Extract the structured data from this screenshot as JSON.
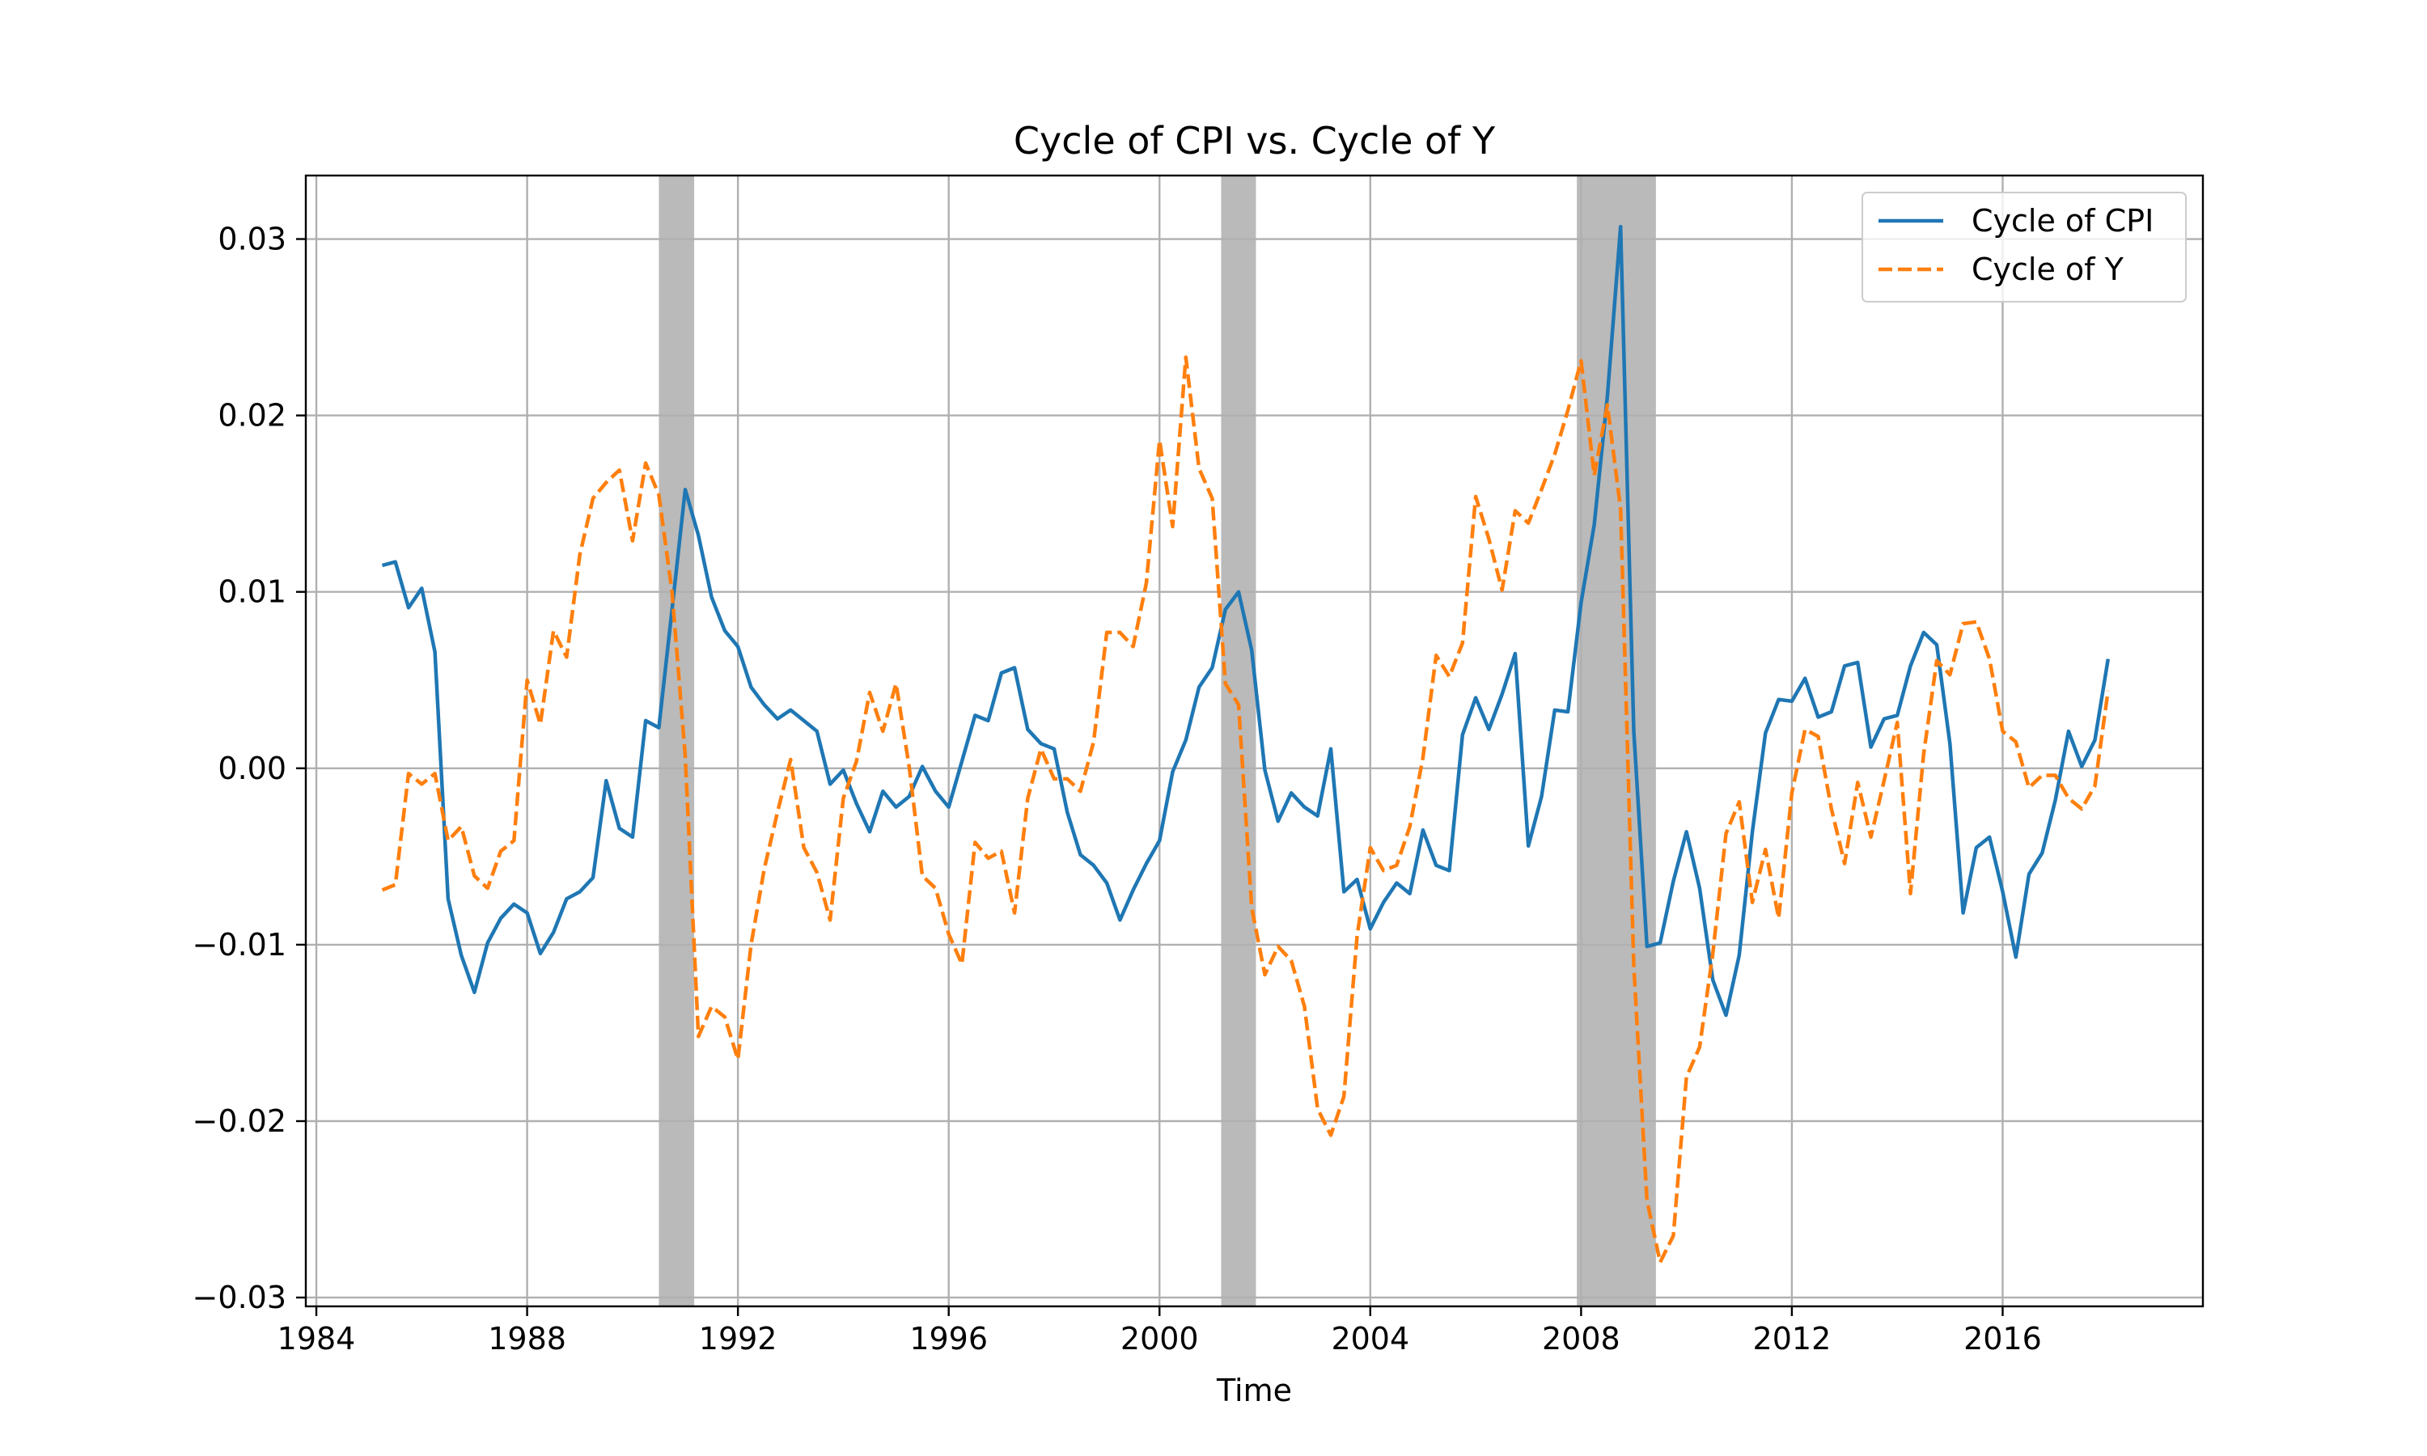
{
  "chart_data": {
    "type": "line",
    "title": "Cycle of CPI vs. Cycle of Y",
    "xlabel": "Time",
    "ylabel": "",
    "xlim": [
      1983.8,
      2019.8
    ],
    "ylim": [
      -0.0305,
      0.0336
    ],
    "grid": true,
    "legend_position": "top-right",
    "x_ticks": [
      {
        "value": 1984,
        "label": "1984"
      },
      {
        "value": 1988,
        "label": "1988"
      },
      {
        "value": 1992,
        "label": "1992"
      },
      {
        "value": 1996,
        "label": "1996"
      },
      {
        "value": 2000,
        "label": "2000"
      },
      {
        "value": 2004,
        "label": "2004"
      },
      {
        "value": 2008,
        "label": "2008"
      },
      {
        "value": 2012,
        "label": "2012"
      },
      {
        "value": 2016,
        "label": "2016"
      }
    ],
    "y_ticks": [
      {
        "value": 0.03,
        "label": "0.03"
      },
      {
        "value": 0.02,
        "label": "0.02"
      },
      {
        "value": 0.01,
        "label": "0.01"
      },
      {
        "value": 0.0,
        "label": "0.00"
      },
      {
        "value": -0.01,
        "label": "−0.01"
      },
      {
        "value": -0.02,
        "label": "−0.02"
      },
      {
        "value": -0.03,
        "label": "−0.03"
      }
    ],
    "recession_bands": [
      {
        "start": 1990.5,
        "end": 1991.17
      },
      {
        "start": 2001.17,
        "end": 2001.83
      },
      {
        "start": 2007.92,
        "end": 2009.42
      }
    ],
    "x": [
      1985.25,
      1985.5,
      1985.75,
      1986.0,
      1986.25,
      1986.5,
      1986.75,
      1987.0,
      1987.25,
      1987.5,
      1987.75,
      1988.0,
      1988.25,
      1988.5,
      1988.75,
      1989.0,
      1989.25,
      1989.5,
      1989.75,
      1990.0,
      1990.25,
      1990.5,
      1990.75,
      1991.0,
      1991.25,
      1991.5,
      1991.75,
      1992.0,
      1992.25,
      1992.5,
      1992.75,
      1993.0,
      1993.25,
      1993.5,
      1993.75,
      1994.0,
      1994.25,
      1994.5,
      1994.75,
      1995.0,
      1995.25,
      1995.5,
      1995.75,
      1996.0,
      1996.25,
      1996.5,
      1996.75,
      1997.0,
      1997.25,
      1997.5,
      1997.75,
      1998.0,
      1998.25,
      1998.5,
      1998.75,
      1999.0,
      1999.25,
      1999.5,
      1999.75,
      2000.0,
      2000.25,
      2000.5,
      2000.75,
      2001.0,
      2001.25,
      2001.5,
      2001.75,
      2002.0,
      2002.25,
      2002.5,
      2002.75,
      2003.0,
      2003.25,
      2003.5,
      2003.75,
      2004.0,
      2004.25,
      2004.5,
      2004.75,
      2005.0,
      2005.25,
      2005.5,
      2005.75,
      2006.0,
      2006.25,
      2006.5,
      2006.75,
      2007.0,
      2007.25,
      2007.5,
      2007.75,
      2008.0,
      2008.25,
      2008.5,
      2008.75,
      2009.0,
      2009.25,
      2009.5,
      2009.75,
      2010.0,
      2010.25,
      2010.5,
      2010.75,
      2011.0,
      2011.25,
      2011.5,
      2011.75,
      2012.0,
      2012.25,
      2012.5,
      2012.75,
      2013.0,
      2013.25,
      2013.5,
      2013.75,
      2014.0,
      2014.25,
      2014.5,
      2014.75,
      2015.0,
      2015.25,
      2015.5,
      2015.75,
      2016.0,
      2016.25,
      2016.5,
      2016.75,
      2017.0,
      2017.25,
      2017.5,
      2017.75,
      2018.0
    ],
    "series": [
      {
        "name": "Cycle of CPI",
        "color": "#1f77b4",
        "style": "solid",
        "values": [
          0.0115,
          0.0117,
          0.0091,
          0.0102,
          0.0066,
          -0.0074,
          -0.0106,
          -0.0127,
          -0.0099,
          -0.0085,
          -0.0077,
          -0.0082,
          -0.0105,
          -0.0093,
          -0.0074,
          -0.007,
          -0.0062,
          -0.0007,
          -0.0034,
          -0.0039,
          0.0027,
          0.0023,
          0.009,
          0.0158,
          0.0132,
          0.0097,
          0.0078,
          0.0069,
          0.0046,
          0.0036,
          0.0028,
          0.0033,
          0.0027,
          0.0021,
          -0.0009,
          -0.0001,
          -0.002,
          -0.0036,
          -0.0013,
          -0.0022,
          -0.0016,
          0.0001,
          -0.0013,
          -0.0022,
          0.0004,
          0.003,
          0.0027,
          0.0054,
          0.0057,
          0.0022,
          0.0014,
          0.0011,
          -0.0025,
          -0.0049,
          -0.0055,
          -0.0065,
          -0.0086,
          -0.0069,
          -0.0054,
          -0.0041,
          -0.0002,
          0.0016,
          0.0046,
          0.0057,
          0.009,
          0.01,
          0.0067,
          -0.0001,
          -0.003,
          -0.0014,
          -0.0022,
          -0.0027,
          0.0011,
          -0.007,
          -0.0063,
          -0.0091,
          -0.0076,
          -0.0065,
          -0.0071,
          -0.0035,
          -0.0055,
          -0.0058,
          0.0019,
          0.004,
          0.0022,
          0.0042,
          0.0065,
          -0.0044,
          -0.0016,
          0.0033,
          0.0032,
          0.0094,
          0.0138,
          0.0211,
          0.0307,
          0.0021,
          -0.0101,
          -0.0099,
          -0.0064,
          -0.0036,
          -0.0068,
          -0.012,
          -0.014,
          -0.0106,
          -0.0036,
          0.002,
          0.0039,
          0.0038,
          0.0051,
          0.0029,
          0.0032,
          0.0058,
          0.006,
          0.0012,
          0.0028,
          0.003,
          0.0058,
          0.0077,
          0.007,
          0.0014,
          -0.0082,
          -0.0045,
          -0.0039,
          -0.007,
          -0.0107,
          -0.006,
          -0.0048,
          -0.0018,
          0.0021,
          0.0001,
          0.0016,
          0.0062
        ]
      },
      {
        "name": "Cycle of Y",
        "color": "#ff7f0e",
        "style": "dashed",
        "values": [
          -0.0069,
          -0.0066,
          -0.0003,
          -0.0009,
          -0.0003,
          -0.0041,
          -0.0033,
          -0.0061,
          -0.0068,
          -0.0047,
          -0.0041,
          0.005,
          0.0025,
          0.0078,
          0.0063,
          0.0121,
          0.0153,
          0.0162,
          0.0169,
          0.0129,
          0.0173,
          0.0155,
          0.01,
          0.0007,
          -0.0152,
          -0.0135,
          -0.0141,
          -0.0165,
          -0.01,
          -0.0057,
          -0.0025,
          0.0005,
          -0.0045,
          -0.0059,
          -0.0086,
          -0.0017,
          0.0004,
          0.0043,
          0.0021,
          0.0048,
          0.0001,
          -0.0061,
          -0.0068,
          -0.0094,
          -0.0111,
          -0.0042,
          -0.0051,
          -0.0047,
          -0.0082,
          -0.0017,
          0.0011,
          -0.0006,
          -0.0006,
          -0.0013,
          0.0015,
          0.0077,
          0.0077,
          0.0069,
          0.0105,
          0.0186,
          0.0137,
          0.0233,
          0.017,
          0.0153,
          0.0048,
          0.0036,
          -0.0079,
          -0.0117,
          -0.0101,
          -0.0109,
          -0.0135,
          -0.0193,
          -0.0208,
          -0.0186,
          -0.0095,
          -0.0045,
          -0.0058,
          -0.0055,
          -0.0033,
          0.0006,
          0.0064,
          0.0052,
          0.0071,
          0.0154,
          0.013,
          0.0101,
          0.0146,
          0.0139,
          0.0158,
          0.0178,
          0.0203,
          0.0231,
          0.0166,
          0.0206,
          0.0147,
          -0.0112,
          -0.0245,
          -0.028,
          -0.0265,
          -0.0175,
          -0.0158,
          -0.0105,
          -0.0037,
          -0.0019,
          -0.0076,
          -0.0046,
          -0.0085,
          -0.0014,
          0.0022,
          0.0018,
          -0.0023,
          -0.0054,
          -0.0008,
          -0.0039,
          -0.0007,
          0.0026,
          -0.0071,
          0.0008,
          0.0061,
          0.0053,
          0.0082,
          0.0083,
          0.0062,
          0.0021,
          0.0015,
          -0.0011,
          -0.0004,
          -0.0004,
          -0.0017,
          -0.0023,
          -0.001,
          0.0044
        ]
      }
    ]
  }
}
